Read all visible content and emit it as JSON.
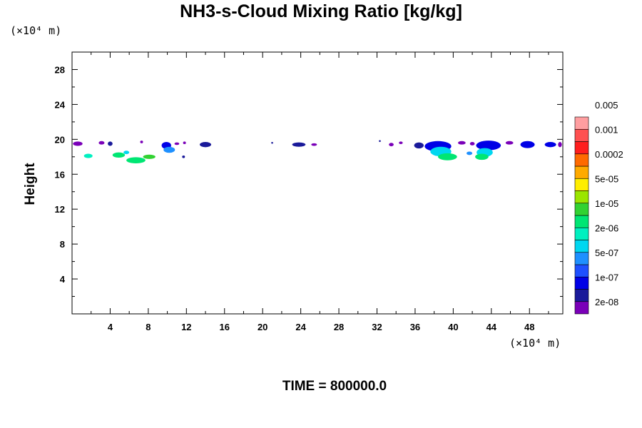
{
  "chart_data": {
    "type": "heatmap",
    "title": "NH3-s-Cloud Mixing Ratio [kg/kg]",
    "xlabel": "",
    "ylabel": "Height",
    "x_unit": "(×10⁴ m)",
    "y_unit": "(×10⁴ m)",
    "xlim": [
      0,
      51.5
    ],
    "ylim": [
      0,
      30
    ],
    "x_ticks": [
      4,
      8,
      12,
      16,
      20,
      24,
      28,
      32,
      36,
      40,
      44,
      48
    ],
    "y_ticks": [
      4,
      8,
      12,
      16,
      20,
      24,
      28
    ],
    "grid": false,
    "colorbar": {
      "colors": [
        "#7a00b8",
        "#1a1a9a",
        "#0000e6",
        "#1e50ff",
        "#1e90ff",
        "#00d7f0",
        "#00f0c0",
        "#00e673",
        "#32d232",
        "#9be600",
        "#ffee00",
        "#ffaa00",
        "#ff6a00",
        "#ff1e1e",
        "#ff5050",
        "#ff9ea0"
      ],
      "labels": [
        "2e-08",
        "1e-07",
        "5e-07",
        "2e-06",
        "1e-05",
        "5e-05",
        "0.0002",
        "0.001",
        "0.005"
      ]
    },
    "cloud_patches": [
      {
        "x": 0.6,
        "y": 19.5,
        "w": 1.0,
        "h": 0.5,
        "level": 0
      },
      {
        "x": 1.7,
        "y": 18.1,
        "w": 0.9,
        "h": 0.5,
        "level": 6
      },
      {
        "x": 3.1,
        "y": 19.6,
        "w": 0.6,
        "h": 0.4,
        "level": 0
      },
      {
        "x": 4.0,
        "y": 19.5,
        "w": 0.5,
        "h": 0.5,
        "level": 1
      },
      {
        "x": 4.9,
        "y": 18.2,
        "w": 1.3,
        "h": 0.6,
        "level": 7
      },
      {
        "x": 5.7,
        "y": 18.5,
        "w": 0.6,
        "h": 0.4,
        "level": 5
      },
      {
        "x": 6.7,
        "y": 17.6,
        "w": 2.0,
        "h": 0.7,
        "level": 7
      },
      {
        "x": 8.1,
        "y": 18.0,
        "w": 1.3,
        "h": 0.5,
        "level": 8
      },
      {
        "x": 7.3,
        "y": 19.7,
        "w": 0.3,
        "h": 0.3,
        "level": 0
      },
      {
        "x": 9.9,
        "y": 19.3,
        "w": 1.0,
        "h": 0.8,
        "level": 2
      },
      {
        "x": 10.2,
        "y": 18.8,
        "w": 1.2,
        "h": 0.7,
        "level": 4
      },
      {
        "x": 11.0,
        "y": 19.5,
        "w": 0.5,
        "h": 0.3,
        "level": 0
      },
      {
        "x": 11.8,
        "y": 19.6,
        "w": 0.3,
        "h": 0.3,
        "level": 0
      },
      {
        "x": 11.7,
        "y": 18.0,
        "w": 0.3,
        "h": 0.3,
        "level": 1
      },
      {
        "x": 14.0,
        "y": 19.4,
        "w": 1.2,
        "h": 0.6,
        "level": 1
      },
      {
        "x": 21.0,
        "y": 19.6,
        "w": 0.2,
        "h": 0.2,
        "level": 1
      },
      {
        "x": 23.8,
        "y": 19.4,
        "w": 1.4,
        "h": 0.5,
        "level": 1
      },
      {
        "x": 25.4,
        "y": 19.4,
        "w": 0.6,
        "h": 0.3,
        "level": 0
      },
      {
        "x": 32.3,
        "y": 19.8,
        "w": 0.2,
        "h": 0.2,
        "level": 1
      },
      {
        "x": 33.5,
        "y": 19.4,
        "w": 0.5,
        "h": 0.4,
        "level": 0
      },
      {
        "x": 34.5,
        "y": 19.6,
        "w": 0.4,
        "h": 0.3,
        "level": 0
      },
      {
        "x": 36.4,
        "y": 19.3,
        "w": 1.0,
        "h": 0.7,
        "level": 1
      },
      {
        "x": 38.4,
        "y": 19.2,
        "w": 2.8,
        "h": 1.2,
        "level": 2
      },
      {
        "x": 38.7,
        "y": 18.6,
        "w": 2.2,
        "h": 1.1,
        "level": 5
      },
      {
        "x": 39.4,
        "y": 18.0,
        "w": 2.0,
        "h": 0.8,
        "level": 7
      },
      {
        "x": 40.9,
        "y": 19.6,
        "w": 0.8,
        "h": 0.4,
        "level": 0
      },
      {
        "x": 42.0,
        "y": 19.5,
        "w": 0.5,
        "h": 0.4,
        "level": 0
      },
      {
        "x": 41.7,
        "y": 18.4,
        "w": 0.6,
        "h": 0.4,
        "level": 4
      },
      {
        "x": 43.7,
        "y": 19.3,
        "w": 2.6,
        "h": 1.1,
        "level": 2
      },
      {
        "x": 43.3,
        "y": 18.5,
        "w": 1.7,
        "h": 1.0,
        "level": 5
      },
      {
        "x": 43.0,
        "y": 18.0,
        "w": 1.4,
        "h": 0.7,
        "level": 7
      },
      {
        "x": 45.9,
        "y": 19.6,
        "w": 0.8,
        "h": 0.4,
        "level": 0
      },
      {
        "x": 47.8,
        "y": 19.4,
        "w": 1.5,
        "h": 0.8,
        "level": 2
      },
      {
        "x": 50.2,
        "y": 19.4,
        "w": 1.2,
        "h": 0.6,
        "level": 2
      },
      {
        "x": 51.2,
        "y": 19.4,
        "w": 0.4,
        "h": 0.6,
        "level": 0
      }
    ]
  },
  "footer": {
    "time_label": "TIME = 800000.0"
  }
}
